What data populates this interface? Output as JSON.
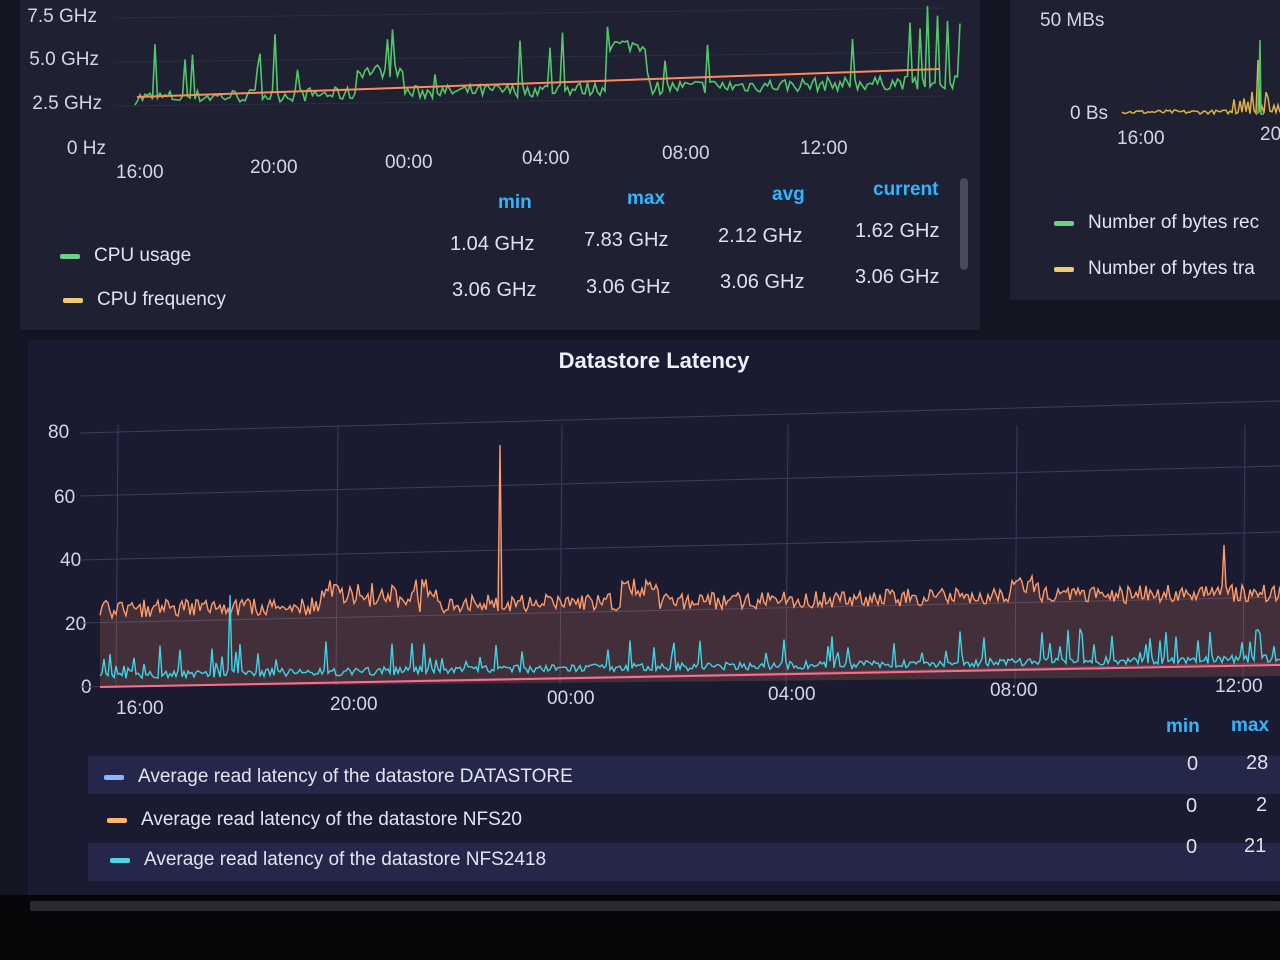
{
  "cpu_panel": {
    "y_ticks": [
      "7.5 GHz",
      "5.0 GHz",
      "2.5 GHz",
      "0 Hz"
    ],
    "x_ticks": [
      "16:00",
      "20:00",
      "00:00",
      "04:00",
      "08:00",
      "12:00"
    ],
    "columns": [
      "min",
      "max",
      "avg",
      "current"
    ],
    "rows": [
      {
        "label": "CPU usage",
        "color": "#6ccf8a",
        "min": "1.04 GHz",
        "max": "7.83 GHz",
        "avg": "2.12 GHz",
        "current": "1.62 GHz"
      },
      {
        "label": "CPU frequency",
        "color": "#f2c96d",
        "min": "3.06 GHz",
        "max": "3.06 GHz",
        "avg": "3.06 GHz",
        "current": "3.06 GHz"
      }
    ]
  },
  "network_panel": {
    "y_ticks": [
      "50 MBs",
      "0 Bs"
    ],
    "x_ticks": [
      "16:00",
      "20"
    ],
    "rows": [
      {
        "label": "Number of bytes rec",
        "color": "#6ccf8a"
      },
      {
        "label": "Number of bytes tra",
        "color": "#f2c96d"
      }
    ]
  },
  "latency_panel": {
    "title": "Datastore Latency",
    "y_ticks": [
      "80",
      "60",
      "40",
      "20",
      "0"
    ],
    "x_ticks": [
      "16:00",
      "20:00",
      "00:00",
      "04:00",
      "08:00",
      "12:00"
    ],
    "columns": [
      "min",
      "max"
    ],
    "rows": [
      {
        "label": "Average read latency of the datastore DATASTORE",
        "color": "#8ab8ff",
        "min": "0",
        "max": "28"
      },
      {
        "label": "Average read latency of the datastore NFS20",
        "color": "#ffb36b",
        "min": "0",
        "max": "2"
      },
      {
        "label": "Average read latency of the datastore NFS2418",
        "color": "#4fd4e8",
        "min": "0",
        "max": "21"
      }
    ]
  },
  "colors": {
    "cpu_usage_line": "#52c76a",
    "cpu_freq_line": "#ff8a5b",
    "latency_orange": "#ff9a6a",
    "latency_cyan": "#3fd3e6",
    "legend_accent": "#2fb6ff"
  }
}
